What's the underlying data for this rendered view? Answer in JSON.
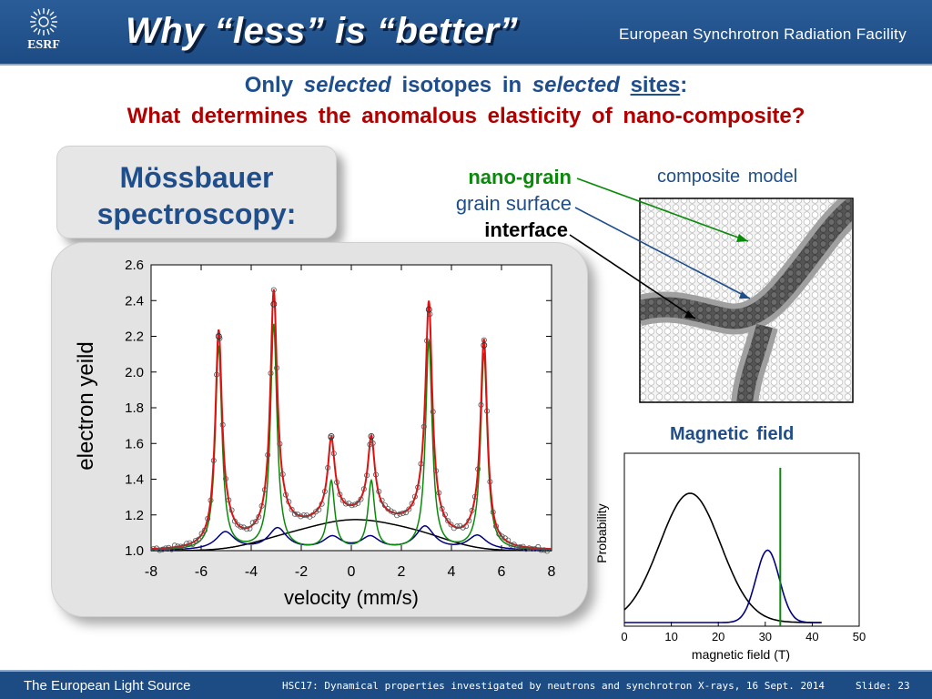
{
  "header": {
    "logo_text": "ESRF",
    "title": "Why  “less”  is  “better”",
    "organization": "European Synchrotron Radiation Facility"
  },
  "subtitle": {
    "w1": "Only",
    "w2": "selected",
    "w3": "isotopes  in",
    "w4": "selected",
    "w5": "sites",
    "w6": ":",
    "question": "What  determines  the  anomalous  elasticity  of  nano-composite?"
  },
  "mossbauer_box": {
    "line1": "Mössbauer",
    "line2": "spectroscopy:"
  },
  "labels": {
    "nano_grain": "nano-grain",
    "grain_surface": "grain surface",
    "interface": "interface",
    "composite_model": "composite  model",
    "magnetic_field": "Magnetic  field"
  },
  "colors": {
    "title_blue": "#1e4e8c",
    "question_red": "#b00000",
    "nano_grain_green": "#0a8a0a",
    "fit_red": "#e01010",
    "interface_black": "#000000",
    "surface_navy": "#000080"
  },
  "chart_data": [
    {
      "type": "line",
      "title": "",
      "xlabel": "velocity  (mm/s)",
      "ylabel": "electron yeild",
      "xlim": [
        -8,
        8
      ],
      "ylim": [
        1.0,
        2.6
      ],
      "xticks": [
        -8,
        -6,
        -4,
        -2,
        0,
        2,
        4,
        6,
        8
      ],
      "yticks": [
        1.0,
        1.2,
        1.4,
        1.6,
        1.8,
        2.0,
        2.2,
        2.4,
        2.6
      ],
      "ytick_labels": [
        "1.0",
        "1.2",
        "1.4",
        "1.6",
        "1.8",
        "2.0",
        "2.2",
        "2.4",
        "2.6"
      ],
      "sextet_positions": [
        -5.3,
        -3.1,
        -0.8,
        0.8,
        3.1,
        5.3
      ],
      "series": [
        {
          "role": "measured",
          "style": "open-circles",
          "color": "#000000",
          "peak_heights": [
            2.2,
            2.38,
            1.64,
            1.64,
            2.35,
            2.15
          ]
        },
        {
          "role": "total fit",
          "style": "line",
          "color": "#e01010",
          "peak_heights": [
            2.19,
            2.36,
            1.62,
            1.62,
            2.34,
            2.15
          ]
        },
        {
          "role": "nano-grain",
          "style": "line",
          "color": "#0a8a0a",
          "peak_heights": [
            2.14,
            2.26,
            1.38,
            1.38,
            2.17,
            2.1
          ]
        },
        {
          "role": "grain surface",
          "style": "line",
          "color": "#000080",
          "peak_heights": [
            1.1,
            1.12,
            1.07,
            1.07,
            1.13,
            1.08
          ]
        },
        {
          "role": "interface",
          "style": "line",
          "color": "#000000",
          "peak_heights": [
            1.05,
            1.08,
            1.18,
            1.19,
            1.1,
            1.05
          ]
        }
      ]
    },
    {
      "type": "line",
      "title": "",
      "xlabel": "magnetic field  (T)",
      "ylabel": "Probability",
      "xlim": [
        0,
        50
      ],
      "xticks": [
        0,
        10,
        20,
        30,
        40,
        50
      ],
      "series": [
        {
          "role": "interface distribution",
          "color": "#000000",
          "center": 14,
          "width": 6.5,
          "peak": 1.0
        },
        {
          "role": "grain surface distribution",
          "color": "#000080",
          "center": 30.5,
          "width": 2.5,
          "peak": 0.56
        },
        {
          "role": "nano-grain field",
          "color": "#0a8a0a",
          "x": 33.2
        }
      ]
    }
  ]
}
